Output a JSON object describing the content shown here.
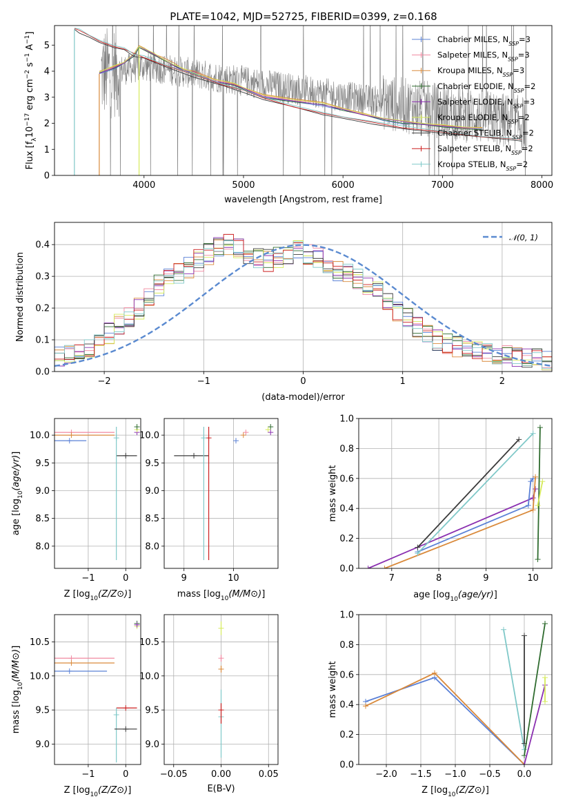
{
  "figure": {
    "title": "PLATE=1042, MJD=52725, FIBERID=0399, z=0.168"
  },
  "colors": {
    "Chabrier MILES": "#5a80d6",
    "Salpeter MILES": "#f0879f",
    "Kroupa MILES": "#d9893a",
    "Chabrier ELODIE": "#2e6b2e",
    "Salpeter ELODIE": "#8a2fb0",
    "Kroupa ELODIE": "#d5ea5a",
    "Chabrier STELIB": "#3a3a3a",
    "Salpeter STELIB": "#cc1f1f",
    "Kroupa STELIB": "#7fc8c8",
    "data": "#808080",
    "gaussian": "#5a8ad0"
  },
  "chart_data": [
    {
      "type": "line",
      "name": "spectrum",
      "xlabel": "wavelength [Angstrom, rest frame]",
      "ylabel": "Flux [f_λ10^{-17} erg cm^{-2} s^{-1} A^{-1}]",
      "ylabel_parts": [
        "Flux [f",
        "λ",
        "10",
        "−17",
        " erg cm",
        "−2",
        " s",
        "−1",
        " A",
        "−1",
        "]"
      ],
      "xlim": [
        3100,
        8100
      ],
      "ylim": [
        0,
        5.75
      ],
      "xticks": [
        4000,
        5000,
        6000,
        7000,
        8000
      ],
      "yticks": [
        0,
        1,
        2,
        3,
        4,
        5
      ],
      "legend": [
        {
          "label": "Chabrier MILES, N",
          "sub": "SSP",
          "suffix": "=3"
        },
        {
          "label": "Salpeter MILES, N",
          "sub": "SSP",
          "suffix": "=3"
        },
        {
          "label": "Kroupa MILES, N",
          "sub": "SSP",
          "suffix": "=3"
        },
        {
          "label": "Chabrier ELODIE, N",
          "sub": "SSP",
          "suffix": "=2"
        },
        {
          "label": "Salpeter ELODIE, N",
          "sub": "SSP",
          "suffix": "=3"
        },
        {
          "label": "Kroupa ELODIE, N",
          "sub": "SSP",
          "suffix": "=2"
        },
        {
          "label": "Chabrier STELIB, N",
          "sub": "SSP",
          "suffix": "=2"
        },
        {
          "label": "Salpeter STELIB, N",
          "sub": "SSP",
          "suffix": "=2"
        },
        {
          "label": "Kroupa STELIB, N",
          "sub": "SSP",
          "suffix": "=2"
        }
      ],
      "legend_placement": "right",
      "models": [
        {
          "name": "MILES",
          "x": [
            3550,
            3700,
            3800,
            3900,
            3950,
            4000,
            4100,
            4200,
            4300,
            4400,
            4500,
            4700,
            4900,
            5000,
            5200,
            5500,
            5800,
            6000,
            6200,
            6400,
            6600,
            6800,
            7000,
            7200,
            7400
          ],
          "y": [
            3.9,
            4.1,
            4.3,
            4.6,
            4.9,
            4.8,
            4.6,
            4.4,
            4.2,
            4.0,
            3.9,
            3.6,
            3.45,
            3.3,
            3.0,
            2.85,
            2.7,
            2.5,
            2.3,
            2.15,
            2.0,
            1.95,
            1.85,
            1.8,
            1.75
          ]
        },
        {
          "name": "STELIB",
          "x": [
            3300,
            3350,
            3450,
            3550,
            3700,
            3800,
            3900,
            4000,
            4200,
            4500,
            4800,
            5000,
            5200,
            5500,
            5800,
            6000,
            6300,
            6600,
            7000,
            7400,
            7800
          ],
          "y": [
            5.6,
            5.5,
            5.3,
            5.1,
            4.9,
            4.8,
            4.6,
            4.5,
            4.2,
            3.8,
            3.4,
            3.2,
            2.9,
            2.6,
            2.35,
            2.2,
            2.0,
            1.8,
            1.6,
            1.45,
            1.35
          ]
        }
      ]
    },
    {
      "type": "bar",
      "name": "residuals",
      "xlabel": "(data-model)/error",
      "ylabel": "Normed distribution",
      "xlim": [
        -2.5,
        2.5
      ],
      "ylim": [
        0,
        0.47
      ],
      "xticks": [
        -2,
        -1,
        0,
        1,
        2
      ],
      "yticks": [
        0.0,
        0.1,
        0.2,
        0.3,
        0.4
      ],
      "legend": [
        "𝒩(0, 1)"
      ],
      "legend_placement": "top-right",
      "bins": 50,
      "hist_shape": [
        0.05,
        0.05,
        0.06,
        0.07,
        0.09,
        0.12,
        0.15,
        0.17,
        0.2,
        0.24,
        0.27,
        0.29,
        0.31,
        0.33,
        0.35,
        0.37,
        0.39,
        0.4,
        0.39,
        0.37,
        0.36,
        0.35,
        0.36,
        0.37,
        0.38,
        0.37,
        0.36,
        0.34,
        0.32,
        0.31,
        0.29,
        0.27,
        0.25,
        0.22,
        0.19,
        0.17,
        0.14,
        0.12,
        0.1,
        0.09,
        0.08,
        0.07,
        0.07,
        0.06,
        0.05,
        0.05,
        0.04,
        0.04,
        0.04,
        0.03
      ]
    },
    {
      "type": "scatter",
      "name": "age-vs-Z",
      "xlabel": "Z [log10(Z/Z⊙)]",
      "ylabel": "age  [log10(age/yr)]",
      "xlim": [
        -1.9,
        0.4
      ],
      "ylim": [
        7.6,
        10.3
      ],
      "xticks": [
        -1,
        0
      ],
      "yticks": [
        8.0,
        8.5,
        9.0,
        9.5,
        10.0
      ],
      "points": [
        {
          "model": "Chabrier MILES",
          "x": -1.5,
          "y": 9.9,
          "xerr": [
            0.55,
            0.45
          ]
        },
        {
          "model": "Salpeter MILES",
          "x": -1.45,
          "y": 10.05,
          "xerr": [
            0.45,
            1.15
          ]
        },
        {
          "model": "Kroupa MILES",
          "x": -1.45,
          "y": 10.0,
          "xerr": [
            0.45,
            1.15
          ]
        },
        {
          "model": "Chabrier STELIB",
          "x": 0.0,
          "y": 9.63,
          "xerr": [
            0.25,
            0.3
          ]
        },
        {
          "model": "Kroupa STELIB",
          "x": -0.25,
          "y": 9.95,
          "yerr": [
            2.2,
            0.2
          ]
        },
        {
          "model": "Salpeter ELODIE",
          "x": 0.3,
          "y": 10.05
        },
        {
          "model": "Kroupa ELODIE",
          "x": 0.3,
          "y": 10.1
        },
        {
          "model": "Chabrier ELODIE",
          "x": 0.3,
          "y": 10.15
        }
      ]
    },
    {
      "type": "scatter",
      "name": "age-vs-mass",
      "xlabel": "mass [log10(M/M⊙)]",
      "ylabel": "",
      "xlim": [
        8.6,
        10.9
      ],
      "ylim": [
        7.6,
        10.3
      ],
      "xticks": [
        9,
        10
      ],
      "yticks": [
        8.0,
        8.5,
        9.0,
        9.5,
        10.0
      ],
      "points": [
        {
          "model": "Chabrier MILES",
          "x": 10.05,
          "y": 9.9
        },
        {
          "model": "Salpeter MILES",
          "x": 10.25,
          "y": 10.05
        },
        {
          "model": "Kroupa MILES",
          "x": 10.2,
          "y": 10.0
        },
        {
          "model": "Chabrier STELIB",
          "x": 9.2,
          "y": 9.63,
          "xerr": [
            0.4,
            0.3
          ]
        },
        {
          "model": "Salpeter STELIB",
          "x": 9.5,
          "y": 9.95,
          "yerr": [
            2.2,
            0.2
          ]
        },
        {
          "model": "Kroupa STELIB",
          "x": 9.4,
          "y": 9.95,
          "yerr": [
            2.2,
            0.2
          ]
        },
        {
          "model": "Chabrier ELODIE",
          "x": 10.75,
          "y": 10.15
        },
        {
          "model": "Kroupa ELODIE",
          "x": 10.7,
          "y": 10.1
        },
        {
          "model": "Salpeter ELODIE",
          "x": 10.75,
          "y": 10.05
        }
      ]
    },
    {
      "type": "line",
      "name": "mass-weight-vs-age",
      "xlabel": "age  [log10(age/yr)]",
      "ylabel": "mass weight",
      "xlim": [
        6.3,
        10.4
      ],
      "ylim": [
        0.0,
        1.0
      ],
      "xticks": [
        7,
        8,
        9,
        10
      ],
      "yticks": [
        0.0,
        0.2,
        0.4,
        0.6,
        0.8,
        1.0
      ],
      "series": [
        {
          "model": "Salpeter ELODIE",
          "x": [
            6.5,
            10.0,
            10.05
          ],
          "y": [
            0.0,
            0.47,
            0.53
          ]
        },
        {
          "model": "Chabrier MILES",
          "x": [
            7.55,
            9.9,
            9.95,
            10.0
          ],
          "y": [
            0.11,
            0.42,
            0.58,
            0.6
          ]
        },
        {
          "model": "Kroupa MILES",
          "x": [
            6.85,
            10.0,
            10.05
          ],
          "y": [
            0.0,
            0.39,
            0.61
          ]
        },
        {
          "model": "Chabrier STELIB",
          "x": [
            7.55,
            9.7
          ],
          "y": [
            0.14,
            0.86
          ]
        },
        {
          "model": "Kroupa STELIB",
          "x": [
            7.55,
            10.0
          ],
          "y": [
            0.1,
            0.9
          ]
        },
        {
          "model": "Chabrier ELODIE",
          "x": [
            10.1,
            10.15
          ],
          "y": [
            0.06,
            0.94
          ]
        },
        {
          "model": "Kroupa ELODIE",
          "x": [
            10.1,
            10.2
          ],
          "y": [
            0.42,
            0.58
          ]
        }
      ]
    },
    {
      "type": "scatter",
      "name": "mass-vs-Z",
      "xlabel": "Z [log10(Z/Z⊙)]",
      "ylabel": "mass [log10(M/M⊙)]",
      "xlim": [
        -1.9,
        0.4
      ],
      "ylim": [
        8.7,
        10.9
      ],
      "xticks": [
        -1,
        0
      ],
      "yticks": [
        9.0,
        9.5,
        10.0,
        10.5
      ],
      "points": [
        {
          "model": "Salpeter MILES",
          "x": -1.45,
          "y": 10.26,
          "xerr": [
            0.45,
            1.15
          ]
        },
        {
          "model": "Kroupa MILES",
          "x": -1.45,
          "y": 10.19,
          "xerr": [
            0.45,
            1.15
          ]
        },
        {
          "model": "Chabrier MILES",
          "x": -1.5,
          "y": 10.07,
          "xerr": [
            0.55,
            1.0
          ]
        },
        {
          "model": "Salpeter STELIB",
          "x": 0.0,
          "y": 9.53,
          "xerr": [
            0.25,
            0.3
          ]
        },
        {
          "model": "Kroupa STELIB",
          "x": -0.25,
          "y": 9.43,
          "yerr": [
            0.7,
            0.1
          ]
        },
        {
          "model": "Chabrier STELIB",
          "x": 0.0,
          "y": 9.22,
          "xerr": [
            0.3,
            0.3
          ]
        },
        {
          "model": "Chabrier ELODIE",
          "x": 0.3,
          "y": 10.77
        },
        {
          "model": "Kroupa ELODIE",
          "x": 0.3,
          "y": 10.73
        },
        {
          "model": "Salpeter ELODIE",
          "x": 0.3,
          "y": 10.75
        }
      ]
    },
    {
      "type": "scatter",
      "name": "mass-vs-EBV",
      "xlabel": "E(B-V)",
      "ylabel": "",
      "xlim": [
        -0.06,
        0.06
      ],
      "ylim": [
        8.7,
        10.9
      ],
      "xticks": [
        -0.05,
        0.0,
        0.05
      ],
      "yticks": [
        9.0,
        9.5,
        10.0,
        10.5
      ],
      "points": [
        {
          "model": "Kroupa ELODIE",
          "x": 0.0,
          "y": 10.7,
          "yerr": [
            0.1,
            0.1
          ]
        },
        {
          "model": "Salpeter MILES",
          "x": 0.0,
          "y": 10.26,
          "yerr": [
            0.05,
            0.05
          ]
        },
        {
          "model": "Kroupa MILES",
          "x": 0.0,
          "y": 10.1,
          "yerr": [
            0.05,
            0.05
          ]
        },
        {
          "model": "Kroupa STELIB",
          "x": 0.0,
          "y": 9.4,
          "yerr": [
            0.6,
            0.4
          ]
        },
        {
          "model": "Salpeter STELIB",
          "x": 0.0,
          "y": 9.5,
          "yerr": [
            0.2,
            0.1
          ]
        }
      ]
    },
    {
      "type": "line",
      "name": "mass-weight-vs-Z",
      "xlabel": "Z [log10(Z/Z⊙)]",
      "ylabel": "mass weight",
      "xlim": [
        -2.4,
        0.4
      ],
      "ylim": [
        0.0,
        1.0
      ],
      "xticks": [
        -2.0,
        -1.5,
        -1.0,
        -0.5,
        0.0
      ],
      "yticks": [
        0.0,
        0.2,
        0.4,
        0.6,
        0.8,
        1.0
      ],
      "series": [
        {
          "model": "Chabrier MILES",
          "x": [
            -2.3,
            -1.3,
            0.0
          ],
          "y": [
            0.42,
            0.58,
            0.0
          ]
        },
        {
          "model": "Kroupa MILES",
          "x": [
            -2.3,
            -1.3,
            0.0
          ],
          "y": [
            0.39,
            0.61,
            0.0
          ]
        },
        {
          "model": "Kroupa STELIB",
          "x": [
            -0.3,
            0.0
          ],
          "y": [
            0.9,
            0.1
          ]
        },
        {
          "model": "Chabrier STELIB",
          "x": [
            0.0,
            0.0
          ],
          "y": [
            0.86,
            0.14
          ]
        },
        {
          "model": "Chabrier ELODIE",
          "x": [
            0.0,
            0.3
          ],
          "y": [
            0.06,
            0.94
          ]
        },
        {
          "model": "Salpeter ELODIE",
          "x": [
            0.0,
            0.3
          ],
          "y": [
            0.0,
            0.53
          ]
        },
        {
          "model": "Kroupa ELODIE",
          "x": [
            0.3,
            0.3
          ],
          "y": [
            0.42,
            0.58
          ]
        }
      ]
    }
  ]
}
